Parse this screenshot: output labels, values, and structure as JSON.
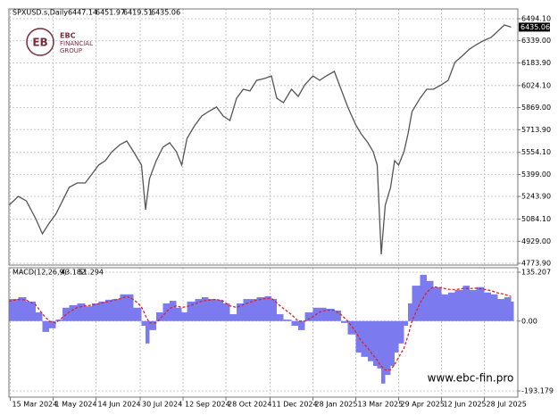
{
  "chart_data": [
    {
      "type": "line",
      "title": "SPXUSD.s,Daily",
      "ohlc": [
        6447.14,
        6451.97,
        6419.51,
        6435.06
      ],
      "color": "#555555",
      "x": [
        0,
        7,
        13,
        20,
        25,
        30,
        35,
        40,
        45,
        51,
        57,
        62,
        67,
        72,
        77,
        83,
        88,
        93,
        99,
        102,
        105,
        110,
        115,
        120,
        125,
        129,
        133,
        139,
        144,
        149,
        155,
        160,
        165,
        170,
        175,
        180,
        185,
        191,
        196,
        200,
        205,
        211,
        216,
        221,
        227,
        232,
        237,
        243,
        248,
        253,
        259,
        263,
        268,
        272,
        275,
        278,
        281,
        285,
        288,
        291,
        295,
        298,
        301,
        307,
        312,
        317,
        323,
        328,
        333,
        339,
        344,
        349,
        355,
        360,
        365,
        370,
        375
      ],
      "values": [
        5182,
        5245,
        5213,
        5088,
        4981,
        5056,
        5119,
        5213,
        5308,
        5339,
        5339,
        5402,
        5465,
        5496,
        5559,
        5609,
        5634,
        5559,
        5465,
        5151,
        5370,
        5496,
        5590,
        5622,
        5559,
        5465,
        5653,
        5747,
        5810,
        5841,
        5873,
        5810,
        5778,
        5935,
        5998,
        5986,
        6061,
        6074,
        6092,
        5935,
        5904,
        5998,
        5948,
        6030,
        6092,
        6061,
        6092,
        6124,
        5998,
        5873,
        5747,
        5684,
        5622,
        5559,
        5465,
        4837,
        5182,
        5308,
        5496,
        5465,
        5559,
        5684,
        5841,
        5935,
        5998,
        5998,
        6030,
        6061,
        6187,
        6237,
        6281,
        6312,
        6343,
        6362,
        6406,
        6450,
        6435
      ],
      "xlim": [
        0,
        380
      ],
      "ylim": [
        4761.3,
        6563.2
      ],
      "yticks": [
        {
          "value": 6494.1,
          "label": "6494.10"
        },
        {
          "value": 6339,
          "label": "6339.00"
        },
        {
          "value": 6183.9,
          "label": "6183.90"
        },
        {
          "value": 6024.1,
          "label": "6024.10"
        },
        {
          "value": 5869,
          "label": "5869.00"
        },
        {
          "value": 5713.9,
          "label": "5713.90"
        },
        {
          "value": 5554.1,
          "label": "5554.10"
        },
        {
          "value": 5399,
          "label": "5399.00"
        },
        {
          "value": 5243.9,
          "label": "5243.90"
        },
        {
          "value": 5084.1,
          "label": "5084.10"
        },
        {
          "value": 4929,
          "label": "4929.00"
        },
        {
          "value": 4773.9,
          "label": "4773.90"
        }
      ],
      "grid": true
    },
    {
      "type": "bar",
      "title": "MACD(12,26,9)",
      "indicator_values": [
        43.182,
        51.294
      ],
      "color": "#7b7bef",
      "x": [
        0,
        7,
        13,
        20,
        25,
        30,
        35,
        40,
        45,
        51,
        57,
        62,
        67,
        72,
        77,
        83,
        88,
        93,
        99,
        102,
        105,
        110,
        115,
        120,
        125,
        129,
        133,
        139,
        144,
        149,
        155,
        160,
        165,
        170,
        175,
        180,
        185,
        191,
        196,
        200,
        205,
        211,
        216,
        221,
        227,
        232,
        237,
        243,
        248,
        253,
        259,
        263,
        268,
        272,
        275,
        278,
        281,
        285,
        288,
        291,
        295,
        298,
        301,
        307,
        312,
        317,
        323,
        328,
        333,
        339,
        344,
        349,
        355,
        360,
        365,
        370,
        375
      ],
      "values": [
        61,
        66,
        54,
        24,
        -30,
        -20,
        4,
        37,
        44,
        49,
        41,
        49,
        54,
        59,
        61,
        74,
        74,
        37,
        -13,
        -62,
        -25,
        24,
        49,
        56,
        37,
        24,
        54,
        61,
        66,
        61,
        59,
        49,
        19,
        49,
        61,
        61,
        66,
        69,
        61,
        19,
        4,
        -13,
        -25,
        24,
        37,
        37,
        34,
        29,
        -5,
        -37,
        -87,
        -99,
        -111,
        -124,
        -131,
        -173,
        -149,
        -124,
        -87,
        -62,
        -13,
        49,
        98,
        128,
        111,
        94,
        74,
        79,
        86,
        98,
        86,
        94,
        79,
        74,
        61,
        66,
        54
      ],
      "line_values": [
        55,
        60,
        58,
        45,
        20,
        0,
        -5,
        10,
        25,
        38,
        42,
        44,
        48,
        52,
        56,
        62,
        68,
        60,
        40,
        15,
        -5,
        -5,
        15,
        35,
        42,
        38,
        40,
        48,
        55,
        58,
        60,
        55,
        42,
        38,
        45,
        52,
        58,
        62,
        63,
        50,
        35,
        18,
        0,
        0,
        12,
        25,
        30,
        30,
        18,
        0,
        -30,
        -55,
        -75,
        -95,
        -108,
        -125,
        -135,
        -135,
        -120,
        -100,
        -75,
        -40,
        0,
        50,
        80,
        95,
        92,
        88,
        87,
        90,
        90,
        91,
        88,
        84,
        78,
        74,
        68
      ],
      "line_color": "#e02020",
      "line_dash": true,
      "xlim": [
        0,
        380
      ],
      "ylim": [
        -210.46,
        147.55
      ],
      "yticks": [
        135.207,
        {
          "value": 0,
          "label": "0.00"
        },
        -193.179
      ],
      "xticks": [
        {
          "value": 1,
          "label": "15 Mar 2024"
        },
        {
          "value": 33,
          "label": "1 May 2024"
        },
        {
          "value": 65,
          "label": "14 Jun 2024"
        },
        {
          "value": 98,
          "label": "30 Jul 2024"
        },
        {
          "value": 130,
          "label": "12 Sep 2024"
        },
        {
          "value": 162,
          "label": "28 Oct 2024"
        },
        {
          "value": 195,
          "label": "11 Dec 2024"
        },
        {
          "value": 227,
          "label": "28 Jan 2025"
        },
        {
          "value": 259,
          "label": "13 Mar 2025"
        },
        {
          "value": 291,
          "label": "29 Apr 2025"
        },
        {
          "value": 323,
          "label": "12 Jun 2025"
        },
        {
          "value": 355,
          "label": "28 Jul 2025"
        }
      ],
      "grid": true
    }
  ],
  "logo": {
    "mark": "EB",
    "name": "EBC",
    "lines": [
      "FINANCIAL",
      "GROUP"
    ]
  },
  "watermark": "www.ebc-fin.pro"
}
